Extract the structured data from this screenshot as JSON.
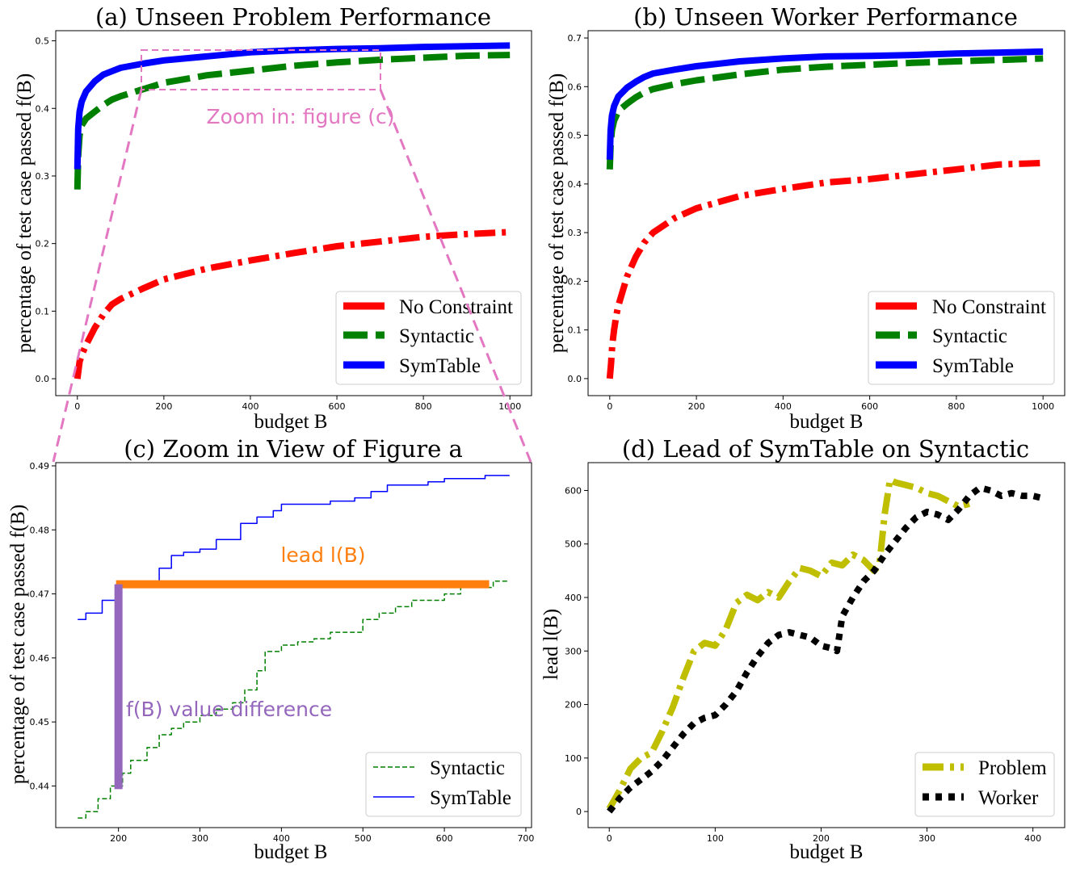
{
  "chart_data": [
    {
      "id": "a",
      "type": "line",
      "title": "(a) Unseen Problem Performance",
      "xlabel": "budget B",
      "ylabel": "percentage of test case passed f(B)",
      "xlim": [
        -50,
        1050
      ],
      "ylim": [
        -0.025,
        0.515
      ],
      "xticks": [
        0,
        200,
        400,
        600,
        800,
        1000
      ],
      "yticks": [
        0.0,
        0.1,
        0.2,
        0.3,
        0.4,
        0.5
      ],
      "ytick_labels": [
        "0.0",
        "0.1",
        "0.2",
        "0.3",
        "0.4",
        "0.5"
      ],
      "legend": "lower-right",
      "series": [
        {
          "name": "No Constraint",
          "color": "#ff0000",
          "style": "dashdot",
          "width": 8,
          "x": [
            0,
            5,
            10,
            20,
            40,
            60,
            80,
            100,
            150,
            200,
            250,
            300,
            400,
            500,
            600,
            700,
            800,
            900,
            1000
          ],
          "y": [
            0.0,
            0.025,
            0.035,
            0.05,
            0.075,
            0.095,
            0.11,
            0.118,
            0.133,
            0.147,
            0.155,
            0.163,
            0.175,
            0.186,
            0.196,
            0.203,
            0.21,
            0.214,
            0.217
          ]
        },
        {
          "name": "Syntactic",
          "color": "#008000",
          "style": "dashed",
          "width": 8,
          "x": [
            0,
            2,
            5,
            10,
            20,
            40,
            60,
            80,
            100,
            150,
            200,
            300,
            400,
            500,
            600,
            700,
            800,
            900,
            1000
          ],
          "y": [
            0.28,
            0.33,
            0.36,
            0.375,
            0.385,
            0.395,
            0.405,
            0.413,
            0.418,
            0.428,
            0.438,
            0.449,
            0.456,
            0.463,
            0.468,
            0.472,
            0.475,
            0.478,
            0.479
          ]
        },
        {
          "name": "SymTable",
          "color": "#0000ff",
          "style": "solid",
          "width": 8,
          "x": [
            0,
            2,
            5,
            10,
            20,
            40,
            60,
            80,
            100,
            150,
            200,
            300,
            400,
            500,
            600,
            700,
            800,
            900,
            1000
          ],
          "y": [
            0.31,
            0.37,
            0.395,
            0.41,
            0.425,
            0.44,
            0.45,
            0.455,
            0.46,
            0.466,
            0.471,
            0.477,
            0.483,
            0.486,
            0.488,
            0.489,
            0.491,
            0.492,
            0.493
          ]
        }
      ],
      "annotation": {
        "text": "Zoom in: figure (c)",
        "color": "#e377c2",
        "zoom_x": [
          150,
          700
        ],
        "zoom_y": [
          0.43,
          0.49
        ]
      }
    },
    {
      "id": "b",
      "type": "line",
      "title": "(b) Unseen Worker Performance",
      "xlabel": "budget B",
      "ylabel": "percentage of test case passed f(B)",
      "xlim": [
        -50,
        1050
      ],
      "ylim": [
        -0.035,
        0.715
      ],
      "xticks": [
        0,
        200,
        400,
        600,
        800,
        1000
      ],
      "yticks": [
        0.0,
        0.1,
        0.2,
        0.3,
        0.4,
        0.5,
        0.6,
        0.7
      ],
      "ytick_labels": [
        "0.0",
        "0.1",
        "0.2",
        "0.3",
        "0.4",
        "0.5",
        "0.6",
        "0.7"
      ],
      "legend": "lower-right",
      "series": [
        {
          "name": "No Constraint",
          "color": "#ff0000",
          "style": "dashdot",
          "width": 8,
          "x": [
            0,
            3,
            6,
            10,
            15,
            20,
            30,
            40,
            60,
            80,
            100,
            150,
            200,
            300,
            400,
            500,
            600,
            700,
            800,
            900,
            1000
          ],
          "y": [
            0.0,
            0.03,
            0.07,
            0.1,
            0.13,
            0.15,
            0.18,
            0.21,
            0.25,
            0.28,
            0.3,
            0.33,
            0.35,
            0.375,
            0.39,
            0.403,
            0.41,
            0.42,
            0.43,
            0.44,
            0.443
          ]
        },
        {
          "name": "Syntactic",
          "color": "#008000",
          "style": "dashed",
          "width": 8,
          "x": [
            0,
            2,
            5,
            10,
            20,
            40,
            60,
            80,
            100,
            150,
            200,
            300,
            400,
            500,
            600,
            700,
            800,
            900,
            1000
          ],
          "y": [
            0.43,
            0.48,
            0.51,
            0.53,
            0.55,
            0.565,
            0.578,
            0.588,
            0.595,
            0.605,
            0.613,
            0.625,
            0.635,
            0.641,
            0.645,
            0.649,
            0.652,
            0.655,
            0.658
          ]
        },
        {
          "name": "SymTable",
          "color": "#0000ff",
          "style": "solid",
          "width": 8,
          "x": [
            0,
            2,
            5,
            10,
            20,
            40,
            60,
            80,
            100,
            150,
            200,
            300,
            400,
            500,
            600,
            700,
            800,
            900,
            1000
          ],
          "y": [
            0.45,
            0.51,
            0.54,
            0.56,
            0.58,
            0.598,
            0.61,
            0.62,
            0.627,
            0.635,
            0.642,
            0.652,
            0.658,
            0.662,
            0.663,
            0.665,
            0.668,
            0.67,
            0.672
          ]
        }
      ]
    },
    {
      "id": "c",
      "type": "line",
      "title": "(c) Zoom in View of Figure a",
      "xlabel": "budget B",
      "ylabel": "percentage of test case passed f(B)",
      "xlim": [
        123,
        707
      ],
      "ylim": [
        0.4335,
        0.4905
      ],
      "xticks": [
        200,
        300,
        400,
        500,
        600,
        700
      ],
      "yticks": [
        0.44,
        0.45,
        0.46,
        0.47,
        0.48,
        0.49
      ],
      "ytick_labels": [
        "0.44",
        "0.45",
        "0.46",
        "0.47",
        "0.48",
        "0.49"
      ],
      "legend": "lower-right",
      "series": [
        {
          "name": "Syntactic",
          "color": "#008000",
          "style": "dashed",
          "width": 1.5,
          "x": [
            150,
            160,
            175,
            190,
            205,
            215,
            235,
            250,
            265,
            280,
            300,
            320,
            340,
            355,
            370,
            380,
            400,
            420,
            440,
            460,
            480,
            500,
            520,
            540,
            560,
            580,
            600,
            620,
            640,
            660,
            680
          ],
          "y": [
            0.435,
            0.436,
            0.438,
            0.44,
            0.442,
            0.444,
            0.446,
            0.448,
            0.449,
            0.45,
            0.451,
            0.452,
            0.453,
            0.455,
            0.458,
            0.461,
            0.462,
            0.4625,
            0.463,
            0.464,
            0.464,
            0.466,
            0.467,
            0.468,
            0.469,
            0.469,
            0.47,
            0.471,
            0.471,
            0.472,
            0.472
          ]
        },
        {
          "name": "SymTable",
          "color": "#0000ff",
          "style": "solid",
          "width": 1.5,
          "x": [
            150,
            160,
            180,
            200,
            220,
            250,
            265,
            280,
            300,
            320,
            350,
            370,
            390,
            400,
            430,
            460,
            490,
            510,
            530,
            560,
            580,
            600,
            620,
            650,
            680
          ],
          "y": [
            0.466,
            0.467,
            0.469,
            0.471,
            0.472,
            0.474,
            0.476,
            0.4765,
            0.477,
            0.4785,
            0.481,
            0.482,
            0.483,
            0.484,
            0.484,
            0.4845,
            0.485,
            0.486,
            0.487,
            0.487,
            0.4875,
            0.488,
            0.488,
            0.4885,
            0.4885
          ]
        }
      ],
      "annotations": [
        {
          "text": "lead l(B)",
          "color": "#ff7f0e"
        },
        {
          "text": "f(B) value difference",
          "color": "#9467bd"
        }
      ],
      "lead_bar": {
        "x": [
          197,
          655
        ],
        "y": 0.4715
      },
      "diff_bar": {
        "x": 200,
        "y": [
          0.4395,
          0.4715
        ]
      }
    },
    {
      "id": "d",
      "type": "line",
      "title": "(d) Lead of SymTable on Syntactic",
      "xlabel": "budget B",
      "ylabel": "lead l(B)",
      "xlim": [
        -20,
        430
      ],
      "ylim": [
        -30,
        652
      ],
      "xticks": [
        0,
        100,
        200,
        300,
        400
      ],
      "yticks": [
        0,
        100,
        200,
        300,
        400,
        500,
        600
      ],
      "ytick_labels": [
        "0",
        "100",
        "200",
        "300",
        "400",
        "500",
        "600"
      ],
      "legend": "lower-right",
      "series": [
        {
          "name": "Problem",
          "color": "#bfbf00",
          "style": "dashdot",
          "width": 8,
          "x": [
            0,
            10,
            20,
            30,
            40,
            50,
            60,
            70,
            80,
            90,
            100,
            110,
            120,
            130,
            140,
            150,
            160,
            170,
            180,
            190,
            200,
            210,
            220,
            230,
            240,
            250,
            255,
            260,
            265,
            270,
            280,
            290,
            300,
            310,
            320,
            330,
            340
          ],
          "y": [
            5,
            40,
            80,
            100,
            110,
            150,
            195,
            250,
            300,
            315,
            310,
            340,
            390,
            405,
            395,
            410,
            400,
            430,
            455,
            450,
            440,
            465,
            460,
            480,
            470,
            450,
            460,
            555,
            620,
            615,
            610,
            605,
            595,
            590,
            580,
            570,
            575
          ]
        },
        {
          "name": "Worker",
          "color": "#000000",
          "style": "dotted",
          "width": 8,
          "x": [
            0,
            10,
            20,
            30,
            40,
            50,
            60,
            70,
            80,
            90,
            100,
            110,
            120,
            130,
            140,
            150,
            160,
            170,
            180,
            190,
            200,
            210,
            215,
            220,
            230,
            240,
            250,
            260,
            270,
            280,
            290,
            300,
            310,
            320,
            330,
            340,
            350,
            360,
            370,
            380,
            390,
            400,
            410
          ],
          "y": [
            0,
            25,
            45,
            60,
            75,
            95,
            120,
            145,
            165,
            175,
            180,
            200,
            225,
            260,
            290,
            315,
            330,
            335,
            330,
            325,
            310,
            305,
            300,
            365,
            400,
            430,
            450,
            480,
            505,
            530,
            550,
            560,
            555,
            545,
            565,
            590,
            605,
            600,
            590,
            595,
            590,
            590,
            585
          ]
        }
      ]
    }
  ]
}
